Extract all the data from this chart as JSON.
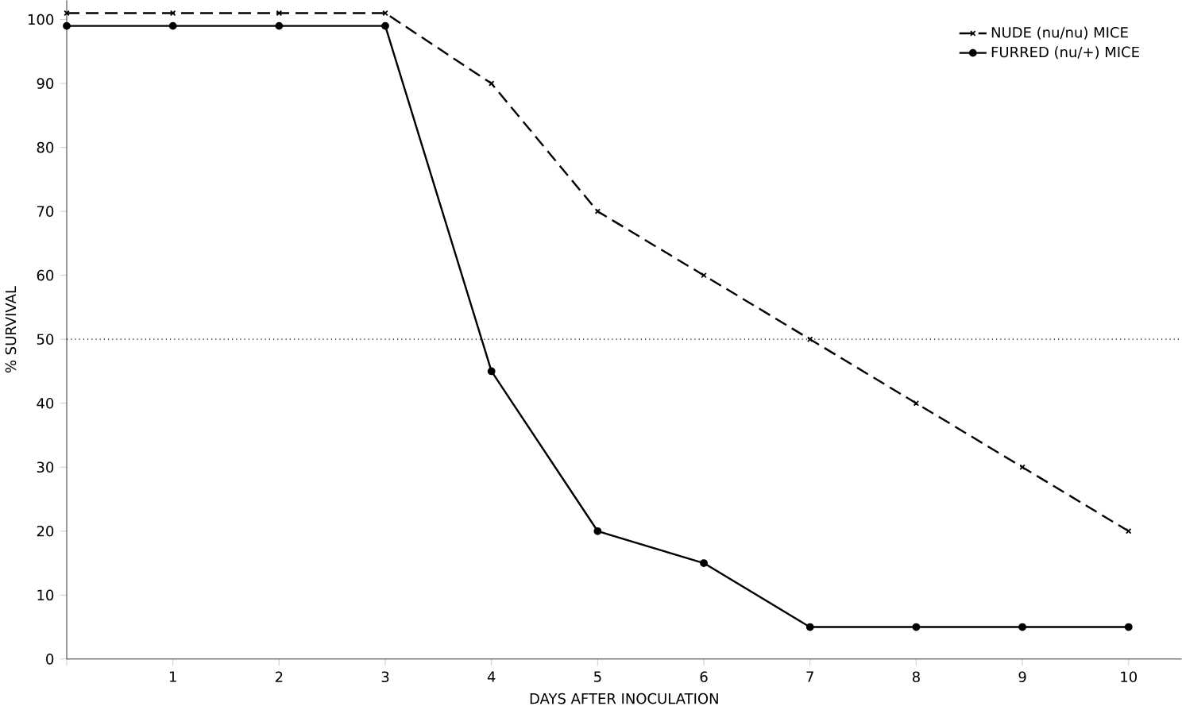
{
  "chart_data": {
    "type": "line",
    "xlabel": "DAYS AFTER INOCULATION",
    "ylabel": "% SURVIVAL",
    "x": [
      0,
      1,
      2,
      3,
      4,
      5,
      6,
      7,
      8,
      9,
      10
    ],
    "series": [
      {
        "name": "NUDE (nu/nu) MICE",
        "color": "#000000",
        "marker": "cross",
        "line_style": "dashed",
        "values": [
          101,
          101,
          101,
          101,
          90,
          70,
          60,
          50,
          40,
          30,
          20
        ]
      },
      {
        "name": "FURRED (nu/+) MICE",
        "color": "#000000",
        "marker": "circle",
        "line_style": "solid",
        "values": [
          99,
          99,
          99,
          99,
          45,
          20,
          15,
          5,
          5,
          5,
          5
        ]
      }
    ],
    "xlim": [
      0,
      10.5
    ],
    "ylim": [
      0,
      103
    ],
    "xticks": [
      {
        "value": 0,
        "label": null
      },
      1,
      2,
      3,
      4,
      5,
      6,
      7,
      8,
      9,
      10
    ],
    "yticks": [
      0,
      10,
      20,
      30,
      40,
      50,
      60,
      70,
      80,
      90,
      100
    ],
    "ref_lines": [
      {
        "axis": "y",
        "value": 50,
        "line_style": "dotted"
      }
    ],
    "grid": false,
    "legend": "top right"
  }
}
